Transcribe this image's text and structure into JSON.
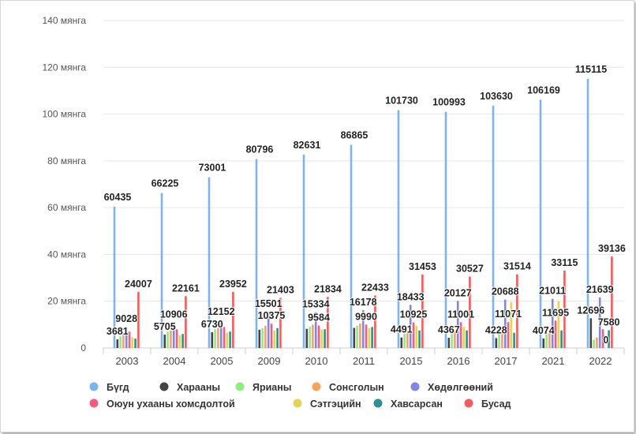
{
  "chart_data": {
    "type": "bar",
    "categories": [
      "2003",
      "2004",
      "2005",
      "2009",
      "2010",
      "2011",
      "2015",
      "2016",
      "2017",
      "2021",
      "2022"
    ],
    "y_ticks": [
      {
        "value": 0,
        "label": "0"
      },
      {
        "value": 20000,
        "label": "20 мянга"
      },
      {
        "value": 40000,
        "label": "40 мянга"
      },
      {
        "value": 60000,
        "label": "60 мянга"
      },
      {
        "value": 80000,
        "label": "80 мянга"
      },
      {
        "value": 100000,
        "label": "100 мянга"
      },
      {
        "value": 120000,
        "label": "120 мянга"
      },
      {
        "value": 140000,
        "label": "140 мянга"
      }
    ],
    "ylim": [
      0,
      140000
    ],
    "grid": true,
    "legend_position": "bottom",
    "series": [
      {
        "name": "Бүгд",
        "color": "#7cb5ec",
        "values": [
          60435,
          66225,
          73001,
          80796,
          82631,
          86865,
          101730,
          100993,
          103630,
          106169,
          115115
        ],
        "labels": [
          "60435",
          "66225",
          "73001",
          "80796",
          "82631",
          "86865",
          "101730",
          "100993",
          "103630",
          "106169",
          "115115"
        ]
      },
      {
        "name": "Харааны",
        "color": "#434348",
        "values": [
          3681,
          5705,
          6730,
          7800,
          8200,
          8600,
          4491,
          4367,
          4228,
          4074,
          12696
        ],
        "labels": [
          "3681",
          "5705",
          "6730",
          "",
          "",
          "",
          "4491",
          "4367",
          "4228",
          "4074",
          "12696"
        ]
      },
      {
        "name": "Ярианы",
        "color": "#90ed7d",
        "values": [
          5000,
          7000,
          8000,
          8500,
          9000,
          9500,
          6000,
          6500,
          6000,
          6500,
          3500
        ],
        "labels": [
          "",
          "",
          "",
          "",
          "",
          "",
          "",
          "",
          "",
          "",
          ""
        ]
      },
      {
        "name": "Сонсголын",
        "color": "#f7a35c",
        "values": [
          6500,
          7500,
          8500,
          9500,
          10000,
          10500,
          7500,
          7500,
          7000,
          7000,
          4500
        ],
        "labels": [
          "",
          "",
          "",
          "",
          "",
          "",
          "",
          "",
          "",
          "",
          ""
        ]
      },
      {
        "name": "Хөдөлгөөний",
        "color": "#8085e9",
        "values": [
          9028,
          10906,
          12152,
          15501,
          15334,
          16178,
          18433,
          20127,
          20688,
          21011,
          21639
        ],
        "labels": [
          "9028",
          "10906",
          "12152",
          "15501",
          "15334",
          "16178",
          "18433",
          "20127",
          "20688",
          "21011",
          "21639"
        ]
      },
      {
        "name": "Оюун ухааны хомсдолтой",
        "color": "#f15c80",
        "values": [
          7000,
          8000,
          9000,
          10375,
          9584,
          9990,
          10925,
          11001,
          11071,
          11695,
          8000
        ],
        "labels": [
          "",
          "",
          "",
          "10375",
          "9584",
          "9990",
          "10925",
          "11001",
          "11071",
          "11695",
          ""
        ]
      },
      {
        "name": "Сэтгэцийн",
        "color": "#e4d354",
        "values": [
          4500,
          5500,
          6500,
          7500,
          8000,
          8500,
          9500,
          9000,
          19500,
          20000,
          0
        ],
        "labels": [
          "",
          "",
          "",
          "",
          "",
          "",
          "",
          "",
          "",
          "",
          "0"
        ]
      },
      {
        "name": "Хавсарсан",
        "color": "#2b908f",
        "values": [
          4000,
          6000,
          7000,
          8500,
          8000,
          9000,
          7500,
          7500,
          6500,
          7500,
          7580
        ],
        "labels": [
          "",
          "",
          "",
          "",
          "",
          "",
          "",
          "",
          "",
          "",
          "7580"
        ]
      },
      {
        "name": "Бусад",
        "color": "#f45b5b",
        "values": [
          24007,
          22161,
          23952,
          21403,
          21834,
          22433,
          31453,
          30527,
          31514,
          33115,
          39136
        ],
        "labels": [
          "24007",
          "22161",
          "23952",
          "21403",
          "21834",
          "22433",
          "31453",
          "30527",
          "31514",
          "33115",
          "39136"
        ]
      }
    ]
  },
  "legend": {
    "row1": [
      "Бүгд",
      "Харааны",
      "Ярианы",
      "Сонсголын",
      "Хөдөлгөөний"
    ],
    "row2": [
      "Оюун ухааны хомсдолтой",
      "Сэтгэцийн",
      "Хавсарсан",
      "Бусад"
    ]
  }
}
